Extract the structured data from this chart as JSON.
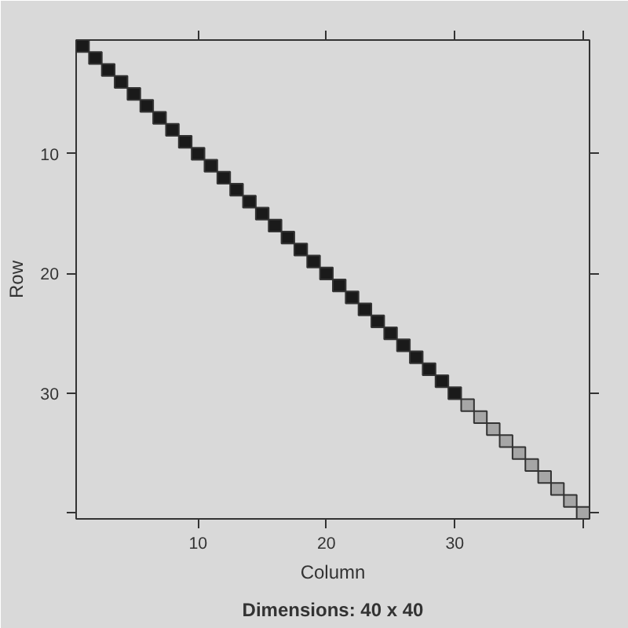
{
  "chart_data": {
    "type": "scatter",
    "xlabel": "Column",
    "ylabel": "Row",
    "annotations": [
      "Dimensions: 40 x 40"
    ],
    "marker": "square",
    "grid": false,
    "xlim": [
      0.5,
      40.5
    ],
    "ylim": [
      40.5,
      0.5
    ],
    "xticks": [
      10,
      20,
      30,
      {
        "value": 40,
        "label": null
      }
    ],
    "yticks": [
      10,
      20,
      30,
      {
        "value": 40,
        "label": null
      }
    ],
    "series": [
      {
        "color": "#1a1a1a",
        "x": [
          1,
          2,
          3,
          4,
          5,
          6,
          7,
          8,
          9,
          10,
          11,
          12,
          13,
          14,
          15,
          16,
          17,
          18,
          19,
          20,
          21,
          22,
          23,
          24,
          25,
          26,
          27,
          28,
          29,
          30
        ],
        "values": [
          1,
          2,
          3,
          4,
          5,
          6,
          7,
          8,
          9,
          10,
          11,
          12,
          13,
          14,
          15,
          16,
          17,
          18,
          19,
          20,
          21,
          22,
          23,
          24,
          25,
          26,
          27,
          28,
          29,
          30
        ]
      },
      {
        "color": "#a6a6a6",
        "x": [
          31,
          32,
          33,
          34,
          35,
          36,
          37,
          38,
          39,
          40
        ],
        "values": [
          31,
          32,
          33,
          34,
          35,
          36,
          37,
          38,
          39,
          40
        ]
      }
    ]
  }
}
